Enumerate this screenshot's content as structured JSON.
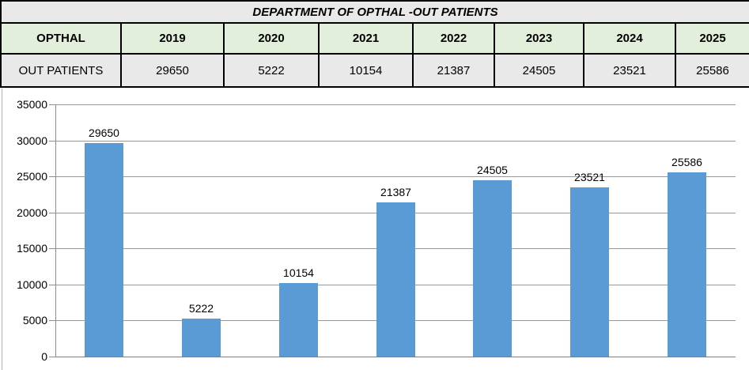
{
  "table": {
    "title": "DEPARTMENT OF OPTHAL -OUT PATIENTS",
    "header_row": [
      "OPTHAL",
      "2019",
      "2020",
      "2021",
      "2022",
      "2023",
      "2024",
      "2025"
    ],
    "data_row_label": "OUT PATIENTS",
    "data_row_values": [
      "29650",
      "5222",
      "10154",
      "21387",
      "24505",
      "23521",
      "25586"
    ]
  },
  "chart_data": {
    "type": "bar",
    "series_name": "OUT PATIENTS",
    "categories": [
      "2019",
      "2020",
      "2021",
      "2022",
      "2023",
      "2024",
      "2025"
    ],
    "values": [
      29650,
      5222,
      10154,
      21387,
      24505,
      23521,
      25586
    ],
    "data_labels": [
      "29650",
      "5222",
      "10154",
      "21387",
      "24505",
      "23521",
      "25586"
    ],
    "title": "",
    "xlabel": "",
    "ylabel": "",
    "ylim": [
      0,
      35000
    ],
    "ytick_step": 5000,
    "ytick_labels": [
      "0",
      "5000",
      "10000",
      "15000",
      "20000",
      "25000",
      "30000",
      "35000"
    ],
    "grid": true,
    "legend_position": "none",
    "x_axis_labels_visible": false
  },
  "colors": {
    "bar_fill": "#5b9bd5",
    "gridline": "#999999",
    "axis": "#8c8c8c",
    "header_green": "#e2efda",
    "row_gray": "#e9e9e9",
    "table_border": "#000000"
  }
}
